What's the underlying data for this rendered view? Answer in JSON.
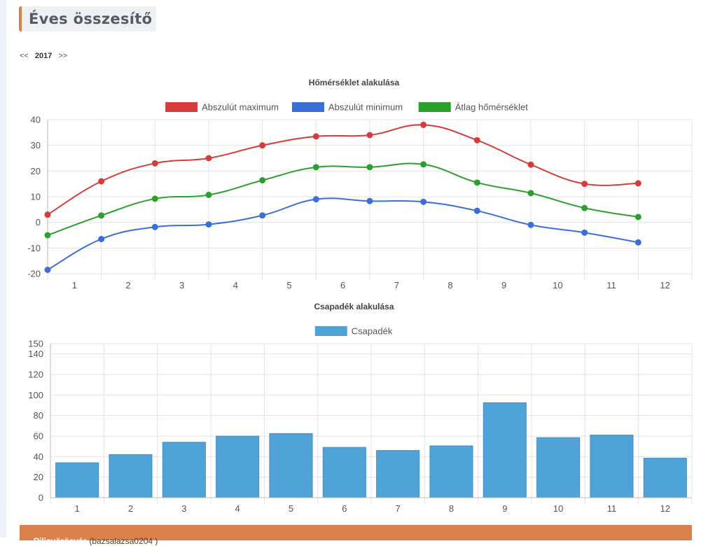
{
  "page": {
    "title": "Éves összesítő",
    "year_prev": "<<",
    "year": "2017",
    "year_next": ">>"
  },
  "chart_data": [
    {
      "type": "line",
      "title": "Hőmérséklet alakulása",
      "categories": [
        "1",
        "2",
        "3",
        "4",
        "5",
        "6",
        "7",
        "8",
        "9",
        "10",
        "11",
        "12"
      ],
      "ylim": [
        -20,
        40
      ],
      "yticks": [
        "-20",
        "-10",
        "0",
        "10",
        "20",
        "30",
        "40"
      ],
      "grid": true,
      "legend_position": "top-center",
      "series": [
        {
          "name": "Abszulút maximum",
          "color": "#d63c3c",
          "values": [
            3,
            16,
            23,
            25,
            30,
            33.5,
            34,
            38,
            32,
            22.5,
            15,
            15.2
          ]
        },
        {
          "name": "Abszulút minimum",
          "color": "#3a6fd8",
          "values": [
            -18.5,
            -6.5,
            -1.8,
            -0.8,
            2.7,
            9,
            8.3,
            8,
            4.5,
            -1,
            -4,
            -7.8
          ]
        },
        {
          "name": "Átlag hőmérséklet",
          "color": "#2ca02c",
          "values": [
            -5,
            2.7,
            9.2,
            10.7,
            16.4,
            21.5,
            21.5,
            22.6,
            15.5,
            11.4,
            5.6,
            2.1
          ]
        }
      ]
    },
    {
      "type": "bar",
      "title": "Csapadék alakulása",
      "categories": [
        "1",
        "2",
        "3",
        "4",
        "5",
        "6",
        "7",
        "8",
        "9",
        "10",
        "11",
        "12"
      ],
      "ylim": [
        0,
        150
      ],
      "yticks": [
        "0",
        "20",
        "40",
        "60",
        "80",
        "100",
        "120",
        "140",
        "150"
      ],
      "grid": true,
      "legend_position": "top-center",
      "series": [
        {
          "name": "Csapadék",
          "color": "#4fa3d6",
          "values": [
            34,
            42,
            54,
            60,
            62.5,
            49,
            46,
            50.5,
            92.5,
            58.5,
            61,
            38.5
          ]
        }
      ]
    }
  ],
  "footer": {
    "location": "Pilisvörösvár",
    "user": "(bazsalazsa0204 )"
  }
}
